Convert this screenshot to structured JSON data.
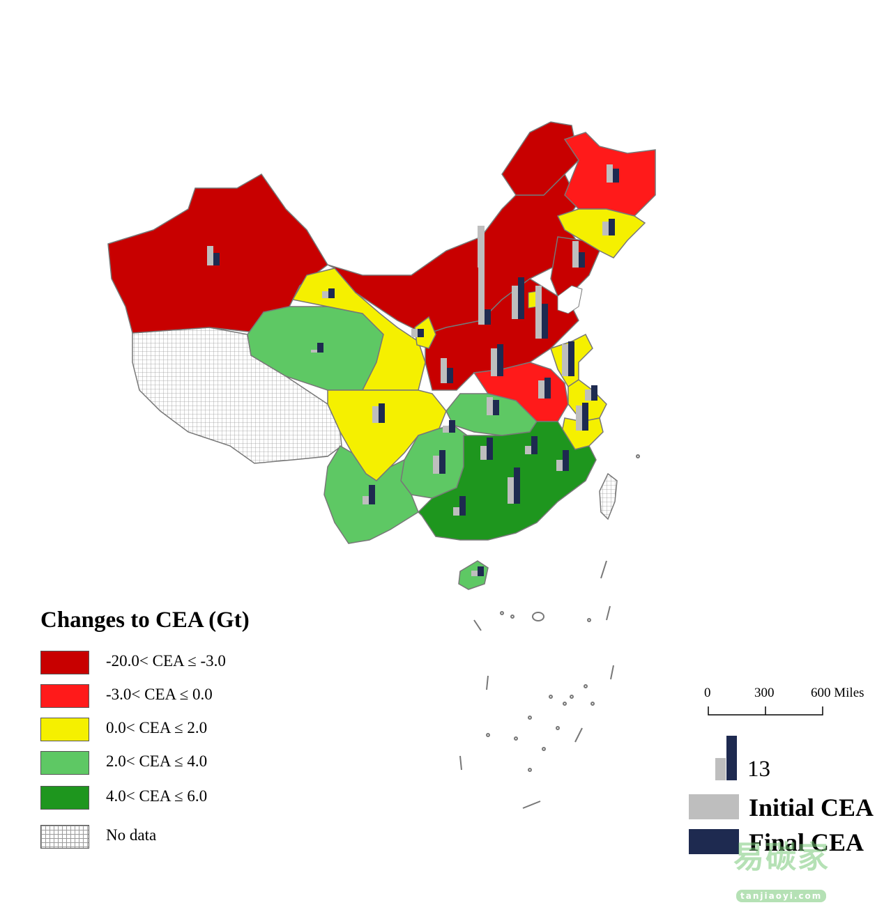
{
  "legend": {
    "title": "Changes to CEA (Gt)",
    "classes": [
      {
        "label": "-20.0< CEA ≤ -3.0",
        "color": "#c80000"
      },
      {
        "label": "-3.0< CEA ≤ 0.0",
        "color": "#ff1a1a"
      },
      {
        "label": "0.0< CEA  ≤ 2.0",
        "color": "#f5f000"
      },
      {
        "label": "2.0< CEA  ≤ 4.0",
        "color": "#5ec864"
      },
      {
        "label": "4.0< CEA  ≤ 6.0",
        "color": "#1e961e"
      },
      {
        "label": "No data",
        "color": "hatched"
      }
    ]
  },
  "scale_bar": {
    "ticks": [
      "0",
      "300",
      "600 Miles"
    ]
  },
  "bar_key": {
    "value_label": "13",
    "initial_label": "Initial CEA",
    "final_label": "Final CEA",
    "initial_color": "#bebebe",
    "final_color": "#1e2a50"
  },
  "watermark": {
    "text": "易碳家",
    "sub": "tanjiaoyi.com"
  },
  "colors": {
    "border": "#777777",
    "no_data": "hatched"
  }
}
